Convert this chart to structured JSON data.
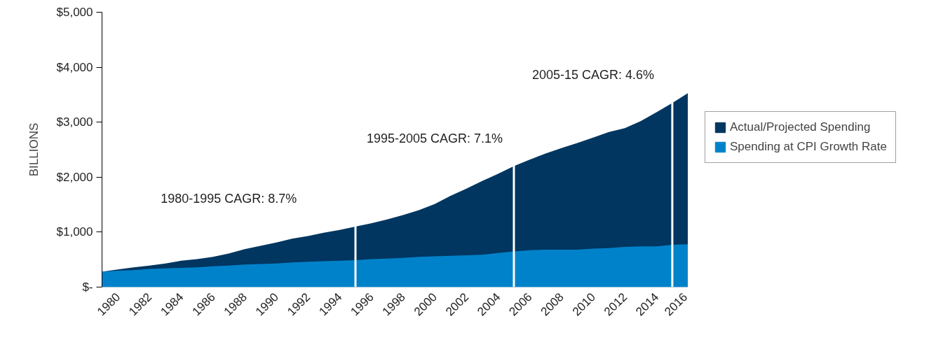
{
  "chart_data": {
    "type": "area",
    "ylabel": "BILLIONS",
    "x": [
      1979,
      1980,
      1981,
      1982,
      1983,
      1984,
      1985,
      1986,
      1987,
      1988,
      1989,
      1990,
      1991,
      1992,
      1993,
      1994,
      1995,
      1996,
      1997,
      1998,
      1999,
      2000,
      2001,
      2002,
      2003,
      2004,
      2005,
      2006,
      2007,
      2008,
      2009,
      2010,
      2011,
      2012,
      2013,
      2014,
      2015,
      2016
    ],
    "series": [
      {
        "name": "Actual/Projected Spending",
        "color": "#003660",
        "values": [
          280,
          320,
          360,
          390,
          430,
          480,
          510,
          550,
          610,
          690,
          750,
          810,
          880,
          930,
          990,
          1040,
          1100,
          1160,
          1230,
          1310,
          1400,
          1510,
          1660,
          1790,
          1930,
          2060,
          2200,
          2320,
          2430,
          2530,
          2620,
          2720,
          2820,
          2890,
          3020,
          3180,
          3350,
          3530
        ]
      },
      {
        "name": "Spending at CPI Growth Rate",
        "color": "#0082ca",
        "values": [
          280,
          300,
          310,
          330,
          340,
          350,
          360,
          380,
          390,
          410,
          420,
          430,
          450,
          460,
          470,
          480,
          490,
          510,
          520,
          530,
          550,
          560,
          570,
          580,
          590,
          620,
          650,
          670,
          680,
          680,
          680,
          700,
          710,
          730,
          740,
          740,
          770,
          780
        ]
      }
    ],
    "xlim": [
      1979,
      2016
    ],
    "xticks": [
      1980,
      1982,
      1984,
      1986,
      1988,
      1990,
      1992,
      1994,
      1996,
      1998,
      2000,
      2002,
      2004,
      2006,
      2008,
      2010,
      2012,
      2014,
      2016
    ],
    "ylim": [
      0,
      5000
    ],
    "yticks": [
      {
        "value": 0,
        "label": "$-"
      },
      {
        "value": 1000,
        "label": "$1,000"
      },
      {
        "value": 2000,
        "label": "$2,000"
      },
      {
        "value": 3000,
        "label": "$3,000"
      },
      {
        "value": 4000,
        "label": "$4,000"
      },
      {
        "value": 5000,
        "label": "$5,000"
      }
    ],
    "ref_lines": [
      {
        "axis": "x",
        "value": 1995,
        "color": "#ffffff"
      },
      {
        "axis": "x",
        "value": 2005,
        "color": "#ffffff"
      },
      {
        "axis": "x",
        "value": 2015,
        "color": "#ffffff"
      }
    ],
    "annotations": [
      "1980-1995 CAGR: 8.7%",
      "1995-2005 CAGR: 7.1%",
      "2005-15 CAGR: 4.6%"
    ],
    "legend": "right",
    "grid": false
  }
}
